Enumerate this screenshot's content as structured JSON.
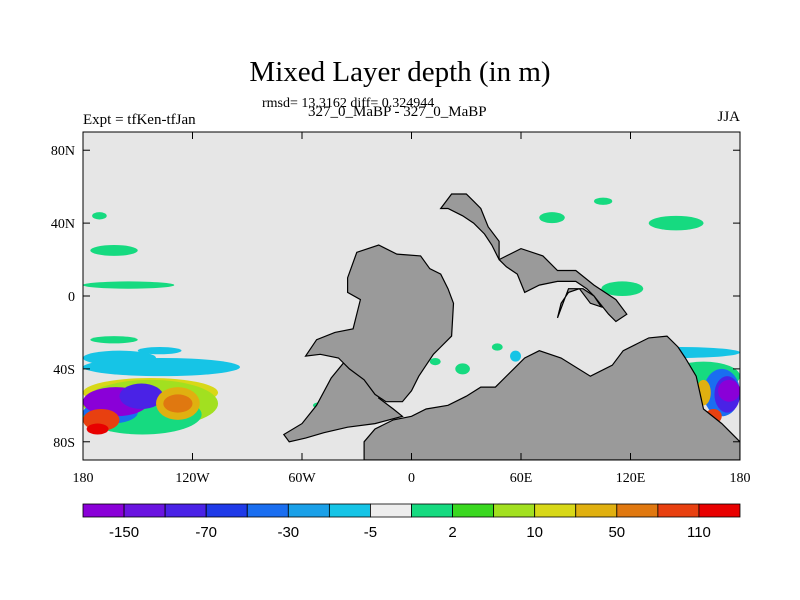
{
  "chart_data": {
    "type": "heatmap",
    "title": "Mixed Layer depth (in m)",
    "subtitle": "rmsd= 13.3162 diff= 0.324944",
    "left_string": "Expt = tfKen-tfJan",
    "center_string": "327_0_MaBP - 327_0_MaBP",
    "right_string": "JJA",
    "xlabel": "",
    "ylabel": "",
    "x_range": [
      -180,
      180
    ],
    "y_range": [
      -90,
      90
    ],
    "x_ticks": [
      {
        "value": -180,
        "label": "180"
      },
      {
        "value": -120,
        "label": "120W"
      },
      {
        "value": -60,
        "label": "60W"
      },
      {
        "value": 0,
        "label": "0"
      },
      {
        "value": 60,
        "label": "60E"
      },
      {
        "value": 120,
        "label": "120E"
      },
      {
        "value": 180,
        "label": "180"
      }
    ],
    "y_ticks": [
      {
        "value": 80,
        "label": "80N"
      },
      {
        "value": 40,
        "label": "40N"
      },
      {
        "value": 0,
        "label": "0"
      },
      {
        "value": -40,
        "label": "40S"
      },
      {
        "value": -80,
        "label": "80S"
      }
    ],
    "colorbar": {
      "colors": [
        "#8a00d8",
        "#6a14e0",
        "#4a22e6",
        "#1f3ae8",
        "#1a6ef0",
        "#1aa0e8",
        "#16c4e6",
        "#eeeeee",
        "#16da80",
        "#3ad820",
        "#a2e020",
        "#d8d818",
        "#e0b010",
        "#e07810",
        "#e84010",
        "#e80000"
      ],
      "labels": [
        {
          "label": "-150",
          "index": 1
        },
        {
          "label": "-70",
          "index": 3
        },
        {
          "label": "-30",
          "index": 5
        },
        {
          "label": "-5",
          "index": 7
        },
        {
          "label": "2",
          "index": 9
        },
        {
          "label": "10",
          "index": 11
        },
        {
          "label": "50",
          "index": 13
        },
        {
          "label": "110",
          "index": 15
        }
      ]
    },
    "land_color": "#9a9a9a",
    "background_color": "#e6e6e6",
    "land_polygons": [
      [
        [
          -67,
          -80
        ],
        [
          -70,
          -76
        ],
        [
          -60,
          -70
        ],
        [
          -52,
          -60
        ],
        [
          -44,
          -45
        ],
        [
          -35,
          -34
        ],
        [
          -22,
          -38
        ],
        [
          -15,
          -48
        ],
        [
          -18,
          -56
        ],
        [
          -10,
          -62
        ],
        [
          -5,
          -66
        ],
        [
          -20,
          -70
        ],
        [
          -35,
          -72
        ],
        [
          -48,
          -75
        ],
        [
          -58,
          -78
        ]
      ],
      [
        [
          -58,
          -33
        ],
        [
          -52,
          -24
        ],
        [
          -42,
          -20
        ],
        [
          -32,
          -18
        ],
        [
          -28,
          -2
        ],
        [
          -35,
          2
        ],
        [
          -35,
          10
        ],
        [
          -30,
          24
        ],
        [
          -18,
          28
        ],
        [
          -8,
          23
        ],
        [
          5,
          22
        ],
        [
          10,
          15
        ],
        [
          16,
          12
        ],
        [
          20,
          4
        ],
        [
          23,
          -4
        ],
        [
          22,
          -22
        ],
        [
          16,
          -28
        ],
        [
          12,
          -32
        ],
        [
          8,
          -38
        ],
        [
          4,
          -44
        ],
        [
          0,
          -52
        ],
        [
          -5,
          -58
        ],
        [
          -14,
          -58
        ],
        [
          -20,
          -54
        ],
        [
          -26,
          -46
        ],
        [
          -34,
          -40
        ],
        [
          -40,
          -34
        ],
        [
          -50,
          -32
        ]
      ],
      [
        [
          -26,
          -80
        ],
        [
          -20,
          -73
        ],
        [
          -10,
          -68
        ],
        [
          0,
          -66
        ],
        [
          8,
          -62
        ],
        [
          20,
          -60
        ],
        [
          30,
          -55
        ],
        [
          38,
          -50
        ],
        [
          46,
          -50
        ],
        [
          56,
          -40
        ],
        [
          62,
          -34
        ],
        [
          70,
          -30
        ],
        [
          82,
          -34
        ],
        [
          98,
          -44
        ],
        [
          110,
          -38
        ],
        [
          116,
          -30
        ],
        [
          124,
          -26
        ],
        [
          130,
          -23
        ],
        [
          140,
          -22
        ],
        [
          146,
          -28
        ],
        [
          150,
          -34
        ],
        [
          156,
          -44
        ],
        [
          160,
          -62
        ],
        [
          170,
          -70
        ],
        [
          175,
          -75
        ],
        [
          180,
          -80
        ],
        [
          180,
          -90
        ],
        [
          -26,
          -90
        ]
      ],
      [
        [
          16,
          48
        ],
        [
          22,
          56
        ],
        [
          30,
          56
        ],
        [
          34,
          52
        ],
        [
          38,
          48
        ],
        [
          42,
          38
        ],
        [
          48,
          30
        ],
        [
          48,
          20
        ],
        [
          52,
          16
        ],
        [
          58,
          12
        ],
        [
          62,
          2
        ],
        [
          70,
          6
        ],
        [
          80,
          8
        ],
        [
          90,
          8
        ],
        [
          96,
          4
        ],
        [
          100,
          0
        ],
        [
          108,
          -10
        ],
        [
          112,
          -14
        ],
        [
          118,
          -10
        ],
        [
          112,
          -2
        ],
        [
          100,
          6
        ],
        [
          90,
          14
        ],
        [
          80,
          14
        ],
        [
          72,
          22
        ],
        [
          60,
          26
        ],
        [
          48,
          20
        ],
        [
          44,
          28
        ],
        [
          40,
          34
        ],
        [
          34,
          40
        ],
        [
          28,
          44
        ],
        [
          20,
          48
        ]
      ],
      [
        [
          80,
          -12
        ],
        [
          82,
          -4
        ],
        [
          86,
          2
        ],
        [
          92,
          4
        ],
        [
          98,
          -4
        ],
        [
          104,
          -6
        ],
        [
          100,
          0
        ],
        [
          94,
          4
        ],
        [
          86,
          4
        ]
      ]
    ],
    "bands": [
      {
        "lon": [
          -180,
          -106
        ],
        "lat": [
          -61,
          -45
        ],
        "color": "#d8d818"
      },
      {
        "lon": [
          -180,
          -106
        ],
        "lat": [
          -72,
          -46
        ],
        "color": "#a2e020"
      },
      {
        "lon": [
          -180,
          -115
        ],
        "lat": [
          -76,
          -54
        ],
        "color": "#16da80"
      },
      {
        "lon": [
          -180,
          -150
        ],
        "lat": [
          -58,
          -70
        ],
        "color": "#1a6ef0"
      },
      {
        "lon": [
          -180,
          -144
        ],
        "lat": [
          -66,
          -50
        ],
        "color": "#8a00d8"
      },
      {
        "lon": [
          -160,
          -136
        ],
        "lat": [
          -62,
          -48
        ],
        "color": "#4a22e6"
      },
      {
        "lon": [
          -140,
          -116
        ],
        "lat": [
          -68,
          -50
        ],
        "color": "#e0b010"
      },
      {
        "lon": [
          -136,
          -120
        ],
        "lat": [
          -64,
          -54
        ],
        "color": "#e07810"
      },
      {
        "lon": [
          -180,
          -160
        ],
        "lat": [
          -74,
          -62
        ],
        "color": "#e84010"
      },
      {
        "lon": [
          -178,
          -166
        ],
        "lat": [
          -76,
          -70
        ],
        "color": "#e80000"
      },
      {
        "lon": [
          -180,
          -94
        ],
        "lat": [
          -44,
          -34
        ],
        "color": "#16c4e6"
      },
      {
        "lon": [
          -180,
          -140
        ],
        "lat": [
          -30,
          -38
        ],
        "color": "#16c4e6"
      },
      {
        "lon": [
          -180,
          -130
        ],
        "lat": [
          8,
          4
        ],
        "color": "#16da80"
      },
      {
        "lon": [
          -175,
          -167
        ],
        "lat": [
          42,
          46
        ],
        "color": "#16da80"
      },
      {
        "lon": [
          -176,
          -150
        ],
        "lat": [
          28,
          22
        ],
        "color": "#16da80"
      },
      {
        "lon": [
          -176,
          -150
        ],
        "lat": [
          -26,
          -22
        ],
        "color": "#16da80"
      },
      {
        "lon": [
          -150,
          -126
        ],
        "lat": [
          -32,
          -28
        ],
        "color": "#16c4e6"
      },
      {
        "lon": [
          130,
          160
        ],
        "lat": [
          36,
          44
        ],
        "color": "#16da80"
      },
      {
        "lon": [
          104,
          127
        ],
        "lat": [
          0,
          8
        ],
        "color": "#16da80"
      },
      {
        "lon": [
          115,
          180
        ],
        "lat": [
          -28,
          -34
        ],
        "color": "#16c4e6"
      },
      {
        "lon": [
          140,
          180
        ],
        "lat": [
          -36,
          -52
        ],
        "color": "#16da80"
      },
      {
        "lon": [
          160,
          180
        ],
        "lat": [
          -40,
          -66
        ],
        "color": "#1a6ef0"
      },
      {
        "lon": [
          166,
          180
        ],
        "lat": [
          -44,
          -64
        ],
        "color": "#4a22e6"
      },
      {
        "lon": [
          168,
          180
        ],
        "lat": [
          -46,
          -58
        ],
        "color": "#8a00d8"
      },
      {
        "lon": [
          156,
          164
        ],
        "lat": [
          -46,
          -60
        ],
        "color": "#e0b010"
      },
      {
        "lon": [
          161,
          170
        ],
        "lat": [
          -62,
          -70
        ],
        "color": "#e84010"
      },
      {
        "lon": [
          70,
          84
        ],
        "lat": [
          40,
          46
        ],
        "color": "#16da80"
      },
      {
        "lon": [
          100,
          110
        ],
        "lat": [
          50,
          54
        ],
        "color": "#16da80"
      },
      {
        "lon": [
          24,
          32
        ],
        "lat": [
          -37,
          -43
        ],
        "color": "#16da80"
      },
      {
        "lon": [
          70,
          88
        ],
        "lat": [
          -42,
          -50
        ],
        "color": "#16da80"
      },
      {
        "lon": [
          -36,
          -24
        ],
        "lat": [
          -58,
          -62
        ],
        "color": "#16da80"
      },
      {
        "lon": [
          -54,
          -42
        ],
        "lat": [
          -58,
          -62
        ],
        "color": "#16da80"
      },
      {
        "lon": [
          54,
          60
        ],
        "lat": [
          -30,
          -36
        ],
        "color": "#16c4e6"
      },
      {
        "lon": [
          44,
          50
        ],
        "lat": [
          -26,
          -30
        ],
        "color": "#16da80"
      },
      {
        "lon": [
          10,
          16
        ],
        "lat": [
          -38,
          -34
        ],
        "color": "#16da80"
      }
    ]
  }
}
